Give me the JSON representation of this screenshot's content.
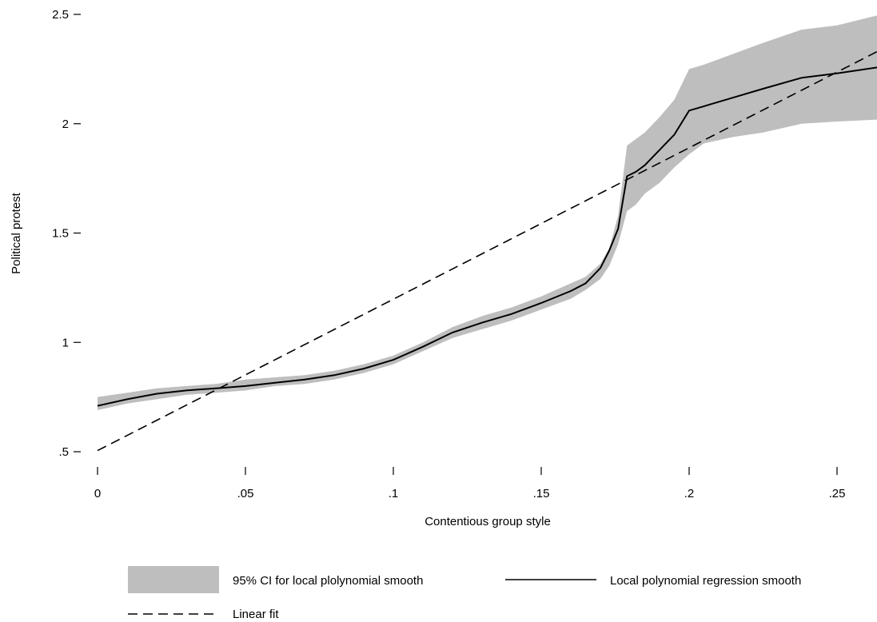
{
  "chart_data": {
    "type": "line",
    "xlabel": "Contentious group style",
    "ylabel": "Political protest",
    "xlim": [
      0,
      0.265
    ],
    "ylim": [
      0.5,
      2.5
    ],
    "x_ticks": [
      {
        "value": 0,
        "label": "0"
      },
      {
        "value": 0.05,
        "label": ".05"
      },
      {
        "value": 0.1,
        "label": ".1"
      },
      {
        "value": 0.15,
        "label": ".15"
      },
      {
        "value": 0.2,
        "label": ".2"
      },
      {
        "value": 0.25,
        "label": ".25"
      }
    ],
    "y_ticks": [
      {
        "value": 0.5,
        "label": ".5"
      },
      {
        "value": 1,
        "label": "1"
      },
      {
        "value": 1.5,
        "label": "1.5"
      },
      {
        "value": 2,
        "label": "2"
      },
      {
        "value": 2.5,
        "label": "2.5"
      }
    ],
    "grid": false,
    "legend_position": "bottom",
    "series": [
      {
        "name": "95% CI for local plolynomial smooth",
        "kind": "band",
        "color": "#bebebe",
        "x": [
          0,
          0.01,
          0.02,
          0.03,
          0.04,
          0.05,
          0.06,
          0.07,
          0.08,
          0.09,
          0.1,
          0.11,
          0.12,
          0.13,
          0.14,
          0.15,
          0.16,
          0.165,
          0.17,
          0.173,
          0.176,
          0.179,
          0.182,
          0.185,
          0.19,
          0.195,
          0.2,
          0.205,
          0.215,
          0.225,
          0.238,
          0.25,
          0.265
        ],
        "lower": [
          0.69,
          0.72,
          0.74,
          0.76,
          0.77,
          0.78,
          0.8,
          0.81,
          0.83,
          0.86,
          0.9,
          0.96,
          1.02,
          1.06,
          1.1,
          1.15,
          1.2,
          1.24,
          1.29,
          1.35,
          1.45,
          1.6,
          1.63,
          1.68,
          1.73,
          1.8,
          1.86,
          1.91,
          1.94,
          1.96,
          2.0,
          2.01,
          2.02
        ],
        "upper": [
          0.75,
          0.77,
          0.79,
          0.8,
          0.81,
          0.83,
          0.84,
          0.85,
          0.87,
          0.9,
          0.94,
          1.0,
          1.07,
          1.12,
          1.16,
          1.21,
          1.27,
          1.3,
          1.36,
          1.43,
          1.58,
          1.9,
          1.93,
          1.96,
          2.03,
          2.11,
          2.25,
          2.27,
          2.32,
          2.37,
          2.43,
          2.45,
          2.5
        ]
      },
      {
        "name": "Local polynomial regression smooth",
        "kind": "line",
        "color": "#000000",
        "dash": "solid",
        "x": [
          0,
          0.01,
          0.02,
          0.03,
          0.04,
          0.05,
          0.06,
          0.07,
          0.08,
          0.09,
          0.1,
          0.11,
          0.12,
          0.13,
          0.14,
          0.15,
          0.16,
          0.165,
          0.17,
          0.173,
          0.176,
          0.179,
          0.182,
          0.185,
          0.19,
          0.195,
          0.2,
          0.205,
          0.215,
          0.225,
          0.238,
          0.25,
          0.265
        ],
        "y": [
          0.71,
          0.74,
          0.765,
          0.78,
          0.79,
          0.8,
          0.815,
          0.83,
          0.85,
          0.88,
          0.92,
          0.98,
          1.045,
          1.09,
          1.13,
          1.18,
          1.235,
          1.27,
          1.34,
          1.42,
          1.52,
          1.76,
          1.78,
          1.81,
          1.88,
          1.95,
          2.06,
          2.08,
          2.12,
          2.16,
          2.21,
          2.23,
          2.26
        ]
      },
      {
        "name": "Linear fit",
        "kind": "line",
        "color": "#000000",
        "dash": "dashed",
        "x": [
          0,
          0.265
        ],
        "y": [
          0.505,
          2.34
        ]
      }
    ]
  }
}
